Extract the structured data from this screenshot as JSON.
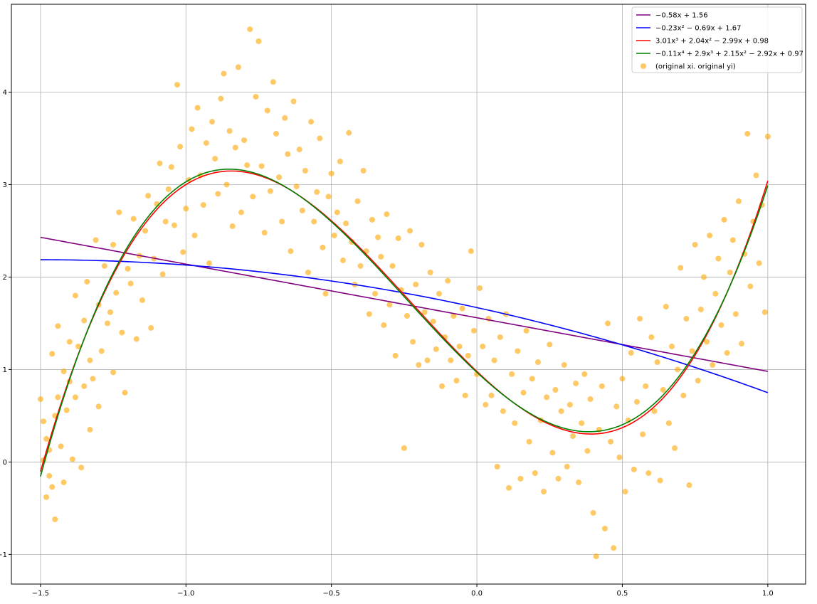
{
  "chart_data": {
    "type": "scatter",
    "title": "",
    "xlabel": "",
    "ylabel": "",
    "xlim": [
      -1.6,
      1.13
    ],
    "ylim": [
      -1.32,
      4.95
    ],
    "xticks": [
      -1.5,
      -1.0,
      -0.5,
      0.0,
      0.5,
      1.0
    ],
    "xtick_labels": [
      "-1.5",
      "-1.0",
      "-0.5",
      "0.0",
      "0.5",
      "1.0"
    ],
    "yticks": [
      -1,
      0,
      1,
      2,
      3,
      4
    ],
    "ytick_labels": [
      "-1",
      "0",
      "1",
      "2",
      "3",
      "4"
    ],
    "grid": true,
    "legend_position": "top-right",
    "series": [
      {
        "name": "−0.58x + 1.56",
        "kind": "line",
        "color": "#800080",
        "coefficients_high_to_low": [
          -0.58,
          1.56
        ],
        "x_range": [
          -1.5,
          1.0
        ]
      },
      {
        "name": "−0.23x² − 0.69x + 1.67",
        "kind": "line",
        "color": "#0000ff",
        "coefficients_high_to_low": [
          -0.23,
          -0.69,
          1.67
        ],
        "x_range": [
          -1.5,
          1.0
        ]
      },
      {
        "name": "3.01x³ + 2.04x² − 2.99x + 0.98",
        "kind": "line",
        "color": "#ff0000",
        "coefficients_high_to_low": [
          3.01,
          2.04,
          -2.99,
          0.98
        ],
        "x_range": [
          -1.5,
          1.0
        ]
      },
      {
        "name": "−0.11x⁴ + 2.9x³ + 2.15x² − 2.92x + 0.97",
        "kind": "line",
        "color": "#008000",
        "coefficients_high_to_low": [
          -0.11,
          2.9,
          2.15,
          -2.92,
          0.97
        ],
        "x_range": [
          -1.5,
          1.0
        ]
      },
      {
        "name": "(original xi. original yi)",
        "kind": "scatter",
        "color": "#ffa500",
        "opacity": 0.6,
        "points": [
          [
            -1.5,
            0.68
          ],
          [
            -1.49,
            0.02
          ],
          [
            -1.49,
            0.44
          ],
          [
            -1.48,
            -0.38
          ],
          [
            -1.48,
            0.25
          ],
          [
            -1.47,
            -0.15
          ],
          [
            -1.47,
            0.13
          ],
          [
            -1.46,
            1.17
          ],
          [
            -1.46,
            -0.27
          ],
          [
            -1.45,
            0.5
          ],
          [
            -1.45,
            -0.62
          ],
          [
            -1.44,
            0.7
          ],
          [
            -1.44,
            1.47
          ],
          [
            -1.43,
            0.17
          ],
          [
            -1.42,
            0.98
          ],
          [
            -1.42,
            -0.22
          ],
          [
            -1.41,
            0.56
          ],
          [
            -1.4,
            1.3
          ],
          [
            -1.4,
            0.87
          ],
          [
            -1.39,
            0.03
          ],
          [
            -1.38,
            0.7
          ],
          [
            -1.38,
            1.8
          ],
          [
            -1.37,
            1.25
          ],
          [
            -1.36,
            -0.06
          ],
          [
            -1.35,
            0.82
          ],
          [
            -1.35,
            1.53
          ],
          [
            -1.34,
            1.95
          ],
          [
            -1.33,
            0.35
          ],
          [
            -1.33,
            1.1
          ],
          [
            -1.32,
            0.9
          ],
          [
            -1.31,
            2.4
          ],
          [
            -1.3,
            1.7
          ],
          [
            -1.3,
            0.6
          ],
          [
            -1.29,
            1.2
          ],
          [
            -1.28,
            2.12
          ],
          [
            -1.27,
            1.5
          ],
          [
            -1.26,
            1.62
          ],
          [
            -1.25,
            2.35
          ],
          [
            -1.25,
            0.97
          ],
          [
            -1.24,
            1.83
          ],
          [
            -1.23,
            2.7
          ],
          [
            -1.22,
            1.4
          ],
          [
            -1.21,
            0.75
          ],
          [
            -1.2,
            2.09
          ],
          [
            -1.19,
            1.93
          ],
          [
            -1.18,
            2.63
          ],
          [
            -1.17,
            1.33
          ],
          [
            -1.16,
            2.23
          ],
          [
            -1.15,
            1.75
          ],
          [
            -1.14,
            2.5
          ],
          [
            -1.13,
            2.88
          ],
          [
            -1.12,
            1.45
          ],
          [
            -1.11,
            2.2
          ],
          [
            -1.1,
            2.79
          ],
          [
            -1.09,
            3.23
          ],
          [
            -1.08,
            2.03
          ],
          [
            -1.07,
            2.6
          ],
          [
            -1.06,
            2.95
          ],
          [
            -1.05,
            3.19
          ],
          [
            -1.04,
            2.56
          ],
          [
            -1.03,
            4.08
          ],
          [
            -1.02,
            3.41
          ],
          [
            -1.01,
            2.27
          ],
          [
            -1.0,
            2.74
          ],
          [
            -0.99,
            3.05
          ],
          [
            -0.98,
            3.6
          ],
          [
            -0.97,
            2.45
          ],
          [
            -0.96,
            3.83
          ],
          [
            -0.95,
            3.1
          ],
          [
            -0.94,
            2.78
          ],
          [
            -0.93,
            3.45
          ],
          [
            -0.92,
            2.15
          ],
          [
            -0.91,
            3.68
          ],
          [
            -0.9,
            3.28
          ],
          [
            -0.89,
            2.9
          ],
          [
            -0.88,
            3.93
          ],
          [
            -0.87,
            4.2
          ],
          [
            -0.86,
            3.0
          ],
          [
            -0.85,
            3.58
          ],
          [
            -0.84,
            2.55
          ],
          [
            -0.83,
            3.4
          ],
          [
            -0.82,
            4.27
          ],
          [
            -0.81,
            2.7
          ],
          [
            -0.8,
            3.48
          ],
          [
            -0.79,
            3.21
          ],
          [
            -0.78,
            4.68
          ],
          [
            -0.77,
            2.87
          ],
          [
            -0.76,
            3.95
          ],
          [
            -0.75,
            4.55
          ],
          [
            -0.74,
            3.2
          ],
          [
            -0.73,
            2.48
          ],
          [
            -0.72,
            3.8
          ],
          [
            -0.71,
            2.93
          ],
          [
            -0.7,
            4.11
          ],
          [
            -0.69,
            3.55
          ],
          [
            -0.68,
            3.08
          ],
          [
            -0.67,
            2.6
          ],
          [
            -0.66,
            3.72
          ],
          [
            -0.65,
            3.33
          ],
          [
            -0.64,
            2.28
          ],
          [
            -0.63,
            3.9
          ],
          [
            -0.62,
            2.98
          ],
          [
            -0.61,
            3.38
          ],
          [
            -0.6,
            2.72
          ],
          [
            -0.59,
            3.15
          ],
          [
            -0.58,
            2.05
          ],
          [
            -0.57,
            3.68
          ],
          [
            -0.56,
            2.6
          ],
          [
            -0.55,
            2.92
          ],
          [
            -0.54,
            3.5
          ],
          [
            -0.53,
            2.32
          ],
          [
            -0.52,
            1.82
          ],
          [
            -0.51,
            2.87
          ],
          [
            -0.5,
            3.12
          ],
          [
            -0.49,
            2.45
          ],
          [
            -0.48,
            2.7
          ],
          [
            -0.47,
            3.25
          ],
          [
            -0.46,
            2.18
          ],
          [
            -0.45,
            2.58
          ],
          [
            -0.44,
            3.56
          ],
          [
            -0.43,
            2.38
          ],
          [
            -0.42,
            1.92
          ],
          [
            -0.41,
            2.82
          ],
          [
            -0.4,
            2.12
          ],
          [
            -0.39,
            3.15
          ],
          [
            -0.38,
            2.28
          ],
          [
            -0.37,
            1.6
          ],
          [
            -0.36,
            2.62
          ],
          [
            -0.35,
            1.82
          ],
          [
            -0.34,
            2.43
          ],
          [
            -0.33,
            2.22
          ],
          [
            -0.32,
            1.48
          ],
          [
            -0.31,
            2.68
          ],
          [
            -0.3,
            1.7
          ],
          [
            -0.29,
            2.12
          ],
          [
            -0.28,
            1.15
          ],
          [
            -0.27,
            2.42
          ],
          [
            -0.26,
            1.86
          ],
          [
            -0.25,
            0.15
          ],
          [
            -0.24,
            1.58
          ],
          [
            -0.23,
            2.5
          ],
          [
            -0.22,
            1.3
          ],
          [
            -0.21,
            1.92
          ],
          [
            -0.2,
            1.05
          ],
          [
            -0.19,
            2.35
          ],
          [
            -0.18,
            1.62
          ],
          [
            -0.17,
            1.1
          ],
          [
            -0.16,
            2.05
          ],
          [
            -0.15,
            1.52
          ],
          [
            -0.14,
            1.22
          ],
          [
            -0.13,
            1.82
          ],
          [
            -0.12,
            0.82
          ],
          [
            -0.11,
            1.35
          ],
          [
            -0.1,
            1.96
          ],
          [
            -0.09,
            1.1
          ],
          [
            -0.08,
            1.58
          ],
          [
            -0.07,
            0.88
          ],
          [
            -0.06,
            1.25
          ],
          [
            -0.05,
            1.66
          ],
          [
            -0.04,
            0.72
          ],
          [
            -0.03,
            1.15
          ],
          [
            -0.02,
            2.28
          ],
          [
            -0.01,
            1.42
          ],
          [
            0.0,
            0.95
          ],
          [
            0.01,
            1.88
          ],
          [
            0.02,
            1.25
          ],
          [
            0.03,
            0.62
          ],
          [
            0.04,
            1.55
          ],
          [
            0.05,
            0.72
          ],
          [
            0.06,
            1.1
          ],
          [
            0.07,
            -0.05
          ],
          [
            0.08,
            1.35
          ],
          [
            0.09,
            0.55
          ],
          [
            0.1,
            1.6
          ],
          [
            0.11,
            -0.28
          ],
          [
            0.12,
            0.95
          ],
          [
            0.13,
            0.42
          ],
          [
            0.14,
            1.2
          ],
          [
            0.15,
            -0.18
          ],
          [
            0.16,
            0.75
          ],
          [
            0.17,
            1.42
          ],
          [
            0.18,
            0.22
          ],
          [
            0.19,
            0.9
          ],
          [
            0.2,
            -0.12
          ],
          [
            0.21,
            1.08
          ],
          [
            0.22,
            0.45
          ],
          [
            0.23,
            -0.32
          ],
          [
            0.24,
            0.7
          ],
          [
            0.25,
            1.27
          ],
          [
            0.26,
            0.1
          ],
          [
            0.27,
            0.78
          ],
          [
            0.28,
            -0.18
          ],
          [
            0.29,
            0.55
          ],
          [
            0.3,
            1.05
          ],
          [
            0.31,
            -0.05
          ],
          [
            0.32,
            0.62
          ],
          [
            0.33,
            0.28
          ],
          [
            0.34,
            0.85
          ],
          [
            0.35,
            -0.22
          ],
          [
            0.36,
            0.42
          ],
          [
            0.37,
            0.95
          ],
          [
            0.38,
            0.12
          ],
          [
            0.39,
            0.68
          ],
          [
            0.4,
            -0.55
          ],
          [
            0.41,
            -1.02
          ],
          [
            0.42,
            0.35
          ],
          [
            0.43,
            0.82
          ],
          [
            0.44,
            -0.72
          ],
          [
            0.45,
            1.5
          ],
          [
            0.46,
            0.22
          ],
          [
            0.47,
            -0.93
          ],
          [
            0.48,
            0.6
          ],
          [
            0.49,
            0.05
          ],
          [
            0.5,
            0.9
          ],
          [
            0.51,
            -0.32
          ],
          [
            0.52,
            0.45
          ],
          [
            0.53,
            1.18
          ],
          [
            0.54,
            -0.08
          ],
          [
            0.55,
            0.65
          ],
          [
            0.56,
            1.55
          ],
          [
            0.57,
            0.3
          ],
          [
            0.58,
            0.82
          ],
          [
            0.59,
            -0.12
          ],
          [
            0.6,
            1.35
          ],
          [
            0.61,
            0.55
          ],
          [
            0.62,
            1.08
          ],
          [
            0.63,
            -0.2
          ],
          [
            0.64,
            0.78
          ],
          [
            0.65,
            1.68
          ],
          [
            0.66,
            0.42
          ],
          [
            0.67,
            1.25
          ],
          [
            0.68,
            0.15
          ],
          [
            0.69,
            1.0
          ],
          [
            0.7,
            2.1
          ],
          [
            0.71,
            0.72
          ],
          [
            0.72,
            1.55
          ],
          [
            0.73,
            -0.25
          ],
          [
            0.74,
            1.2
          ],
          [
            0.75,
            2.35
          ],
          [
            0.76,
            0.88
          ],
          [
            0.77,
            1.65
          ],
          [
            0.78,
            2.0
          ],
          [
            0.79,
            1.3
          ],
          [
            0.8,
            2.45
          ],
          [
            0.81,
            1.05
          ],
          [
            0.82,
            1.82
          ],
          [
            0.83,
            2.2
          ],
          [
            0.84,
            1.48
          ],
          [
            0.85,
            2.62
          ],
          [
            0.86,
            1.18
          ],
          [
            0.87,
            2.05
          ],
          [
            0.88,
            2.4
          ],
          [
            0.89,
            1.6
          ],
          [
            0.9,
            2.82
          ],
          [
            0.91,
            1.28
          ],
          [
            0.92,
            2.25
          ],
          [
            0.93,
            3.55
          ],
          [
            0.94,
            1.9
          ],
          [
            0.95,
            2.6
          ],
          [
            0.96,
            3.1
          ],
          [
            0.97,
            2.15
          ],
          [
            0.98,
            2.78
          ],
          [
            0.99,
            1.62
          ],
          [
            1.0,
            3.52
          ]
        ]
      }
    ]
  }
}
